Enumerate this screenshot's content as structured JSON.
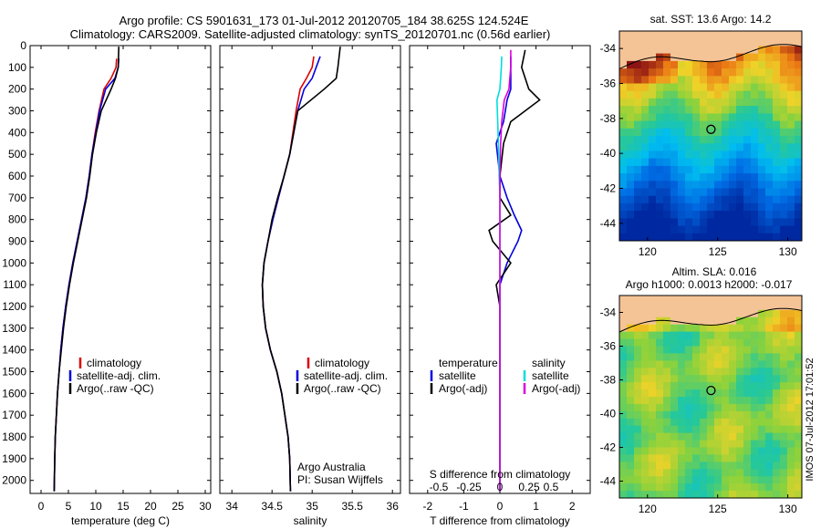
{
  "header": {
    "line1": "Argo profile: CS 5901631_173 01-Jul-2012 20120705_184 38.625S 124.524E",
    "line2": "Climatology: CARS2009. Satellite-adjusted climatology: synTS_20120701.nc (0.56d earlier)"
  },
  "colors": {
    "climatology": "#dd0000",
    "satellite": "#0000dd",
    "argo": "#000000",
    "sal_satellite": "#00dddd",
    "sal_argo": "#dd00dd"
  },
  "chart_data": [
    {
      "type": "line",
      "name": "temperature-panel",
      "xlabel": "temperature (deg C)",
      "ylabel": "",
      "xlim": [
        -2,
        31
      ],
      "ylim": [
        2060,
        0
      ],
      "xticks": [
        0,
        5,
        10,
        15,
        20,
        25,
        30
      ],
      "yticks": [
        0,
        100,
        200,
        300,
        400,
        500,
        600,
        700,
        800,
        900,
        1000,
        1100,
        1200,
        1300,
        1400,
        1500,
        1600,
        1700,
        1800,
        1900,
        2000
      ],
      "legend": [
        "climatology",
        "satellite-adj. clim.",
        "Argo(..raw -QC)"
      ],
      "legend_position": "bottom-center",
      "series": [
        {
          "name": "climatology",
          "color": "#dd0000",
          "x": [
            13.8,
            13.7,
            12.8,
            11.5,
            10.6,
            9.9,
            9.3,
            8.8,
            8.2,
            7.4,
            6.6,
            5.8,
            5.1,
            4.5,
            4.0,
            3.6,
            3.3,
            3.0,
            2.8,
            2.6,
            2.5,
            2.4
          ],
          "y": [
            60,
            100,
            150,
            200,
            300,
            400,
            500,
            600,
            700,
            800,
            900,
            1000,
            1100,
            1200,
            1300,
            1400,
            1500,
            1600,
            1700,
            1800,
            1900,
            2050
          ]
        },
        {
          "name": "satellite-adj. clim.",
          "color": "#0000dd",
          "x": [
            14.2,
            14.1,
            13.5,
            11.8,
            10.7,
            10.0,
            9.3,
            8.8,
            8.2,
            7.4,
            6.6,
            5.8,
            5.1,
            4.5,
            4.0,
            3.6,
            3.3,
            3.0,
            2.8,
            2.6,
            2.5,
            2.4
          ],
          "y": [
            60,
            100,
            150,
            200,
            300,
            400,
            500,
            600,
            700,
            800,
            900,
            1000,
            1100,
            1200,
            1300,
            1400,
            1500,
            1600,
            1700,
            1800,
            1900,
            2050
          ]
        },
        {
          "name": "Argo(..raw -QC)",
          "color": "#000000",
          "x": [
            14.2,
            14.1,
            13.6,
            12.8,
            11.0,
            10.1,
            9.4,
            8.9,
            8.3,
            7.5,
            6.7,
            5.9,
            5.2,
            4.6,
            4.1,
            3.7,
            3.3,
            3.0,
            2.8,
            2.6,
            2.5,
            2.4
          ],
          "y": [
            5,
            100,
            150,
            200,
            300,
            400,
            500,
            600,
            700,
            800,
            900,
            1000,
            1100,
            1200,
            1300,
            1400,
            1500,
            1600,
            1700,
            1800,
            1900,
            2050
          ]
        }
      ]
    },
    {
      "type": "line",
      "name": "salinity-panel",
      "xlabel": "salinity",
      "ylabel": "",
      "xlim": [
        33.85,
        36.1
      ],
      "ylim": [
        2060,
        0
      ],
      "xticks": [
        34,
        34.5,
        35,
        35.5,
        36
      ],
      "legend": [
        "climatology",
        "satellite-adj. clim.",
        "Argo(..raw -QC)"
      ],
      "legend_position": "bottom-right",
      "annotation": [
        "Argo Australia",
        "PI: Susan Wijffels"
      ],
      "series": [
        {
          "name": "climatology",
          "color": "#dd0000",
          "x": [
            35.02,
            35.0,
            34.93,
            34.85,
            34.8,
            34.72,
            34.65,
            34.58,
            34.51,
            34.45,
            34.4,
            34.38,
            34.39,
            34.42,
            34.48,
            34.56,
            34.62,
            34.66,
            34.7,
            34.72,
            34.73
          ],
          "y": [
            50,
            100,
            150,
            200,
            300,
            500,
            600,
            700,
            800,
            900,
            1000,
            1100,
            1200,
            1300,
            1400,
            1500,
            1600,
            1700,
            1800,
            1900,
            2050
          ]
        },
        {
          "name": "satellite-adj. clim.",
          "color": "#0000dd",
          "x": [
            35.1,
            35.05,
            35.0,
            34.9,
            34.82,
            34.72,
            34.65,
            34.58,
            34.51,
            34.45,
            34.4,
            34.38,
            34.39,
            34.42,
            34.48,
            34.56,
            34.62,
            34.66,
            34.7,
            34.72,
            34.73
          ],
          "y": [
            50,
            100,
            150,
            200,
            300,
            500,
            600,
            700,
            800,
            900,
            1000,
            1100,
            1200,
            1300,
            1400,
            1500,
            1600,
            1700,
            1800,
            1900,
            2050
          ]
        },
        {
          "name": "Argo(..raw -QC)",
          "color": "#000000",
          "x": [
            35.35,
            35.32,
            35.3,
            35.15,
            34.82,
            34.72,
            34.65,
            34.57,
            34.5,
            34.45,
            34.4,
            34.38,
            34.39,
            34.42,
            34.48,
            34.56,
            34.62,
            34.66,
            34.7,
            34.72,
            34.73
          ],
          "y": [
            5,
            100,
            150,
            200,
            300,
            500,
            600,
            700,
            800,
            900,
            1000,
            1100,
            1200,
            1300,
            1400,
            1500,
            1600,
            1700,
            1800,
            1900,
            2050
          ]
        }
      ]
    },
    {
      "type": "line",
      "name": "difference-panel",
      "xlabel": "T difference from climatology",
      "x2label": "S difference from climatology",
      "ylabel": "",
      "xlim": [
        -2.5,
        2.5
      ],
      "ylim": [
        2060,
        0
      ],
      "xticks": [
        -2,
        -1,
        0,
        1,
        2
      ],
      "x2ticks": [
        "-0.5",
        "-0.25",
        "0",
        "0.25",
        "0.5"
      ],
      "legend_headers": [
        "temperature",
        "salinity"
      ],
      "legend": [
        "satellite",
        "Argo(-adj)",
        "satellite",
        "Argo(-adj)"
      ],
      "legend_position": "bottom",
      "series": [
        {
          "name": "temperature satellite",
          "color": "#0000dd",
          "x": [
            0.3,
            0.3,
            0.3,
            0.2,
            0.1,
            -0.1,
            0.0,
            0.2,
            0.4,
            0.6,
            0.5,
            0.2,
            0.0,
            0.0,
            0.0,
            0.0,
            0.0,
            0.0,
            0.0
          ],
          "y": [
            50,
            100,
            200,
            250,
            350,
            450,
            600,
            700,
            780,
            850,
            900,
            1000,
            1100,
            1200,
            1300,
            1500,
            1700,
            1900,
            2050
          ]
        },
        {
          "name": "temperature Argo(-adj)",
          "color": "#000000",
          "x": [
            0.7,
            0.6,
            0.8,
            1.1,
            0.3,
            0.1,
            0.0,
            0.0,
            0.3,
            -0.3,
            -0.2,
            0.3,
            -0.1,
            0.0,
            0.0,
            0.0,
            0.0,
            0.0,
            0.0
          ],
          "y": [
            20,
            100,
            200,
            250,
            350,
            450,
            600,
            700,
            780,
            850,
            900,
            1000,
            1100,
            1200,
            1300,
            1500,
            1700,
            1900,
            2050
          ]
        },
        {
          "name": "salinity satellite",
          "color": "#00dddd",
          "x": [
            0.05,
            0.04,
            0.0,
            -0.08,
            -0.06,
            -0.04,
            -0.02,
            0.0,
            0.0,
            0.0,
            0.0,
            0.0,
            0.0,
            0.0,
            0.0,
            0.0,
            0.0,
            0.0,
            0.0
          ],
          "y": [
            50,
            100,
            200,
            250,
            350,
            450,
            600,
            700,
            780,
            850,
            900,
            1000,
            1100,
            1200,
            1300,
            1500,
            1700,
            1900,
            2050
          ]
        },
        {
          "name": "salinity Argo(-adj)",
          "color": "#dd00dd",
          "x": [
            0.3,
            0.3,
            0.25,
            0.12,
            0.05,
            0.02,
            0.0,
            0.0,
            0.0,
            0.0,
            0.0,
            0.0,
            0.0,
            0.0,
            0.0,
            0.0,
            0.0,
            0.0,
            0.0
          ],
          "y": [
            20,
            100,
            200,
            250,
            350,
            450,
            600,
            700,
            780,
            850,
            900,
            1000,
            1100,
            1200,
            1300,
            1500,
            1700,
            1900,
            2050
          ]
        }
      ]
    },
    {
      "type": "heatmap",
      "name": "sst-map",
      "title": "sat. SST: 13.6 Argo: 14.2",
      "xticks": [
        120,
        125,
        130
      ],
      "yticks": [
        -34,
        -36,
        -38,
        -40,
        -42,
        -44
      ],
      "xlim": [
        118,
        131
      ],
      "ylim": [
        -45,
        -33
      ],
      "marker": {
        "lon": 124.524,
        "lat": -38.625
      }
    },
    {
      "type": "heatmap",
      "name": "sla-map",
      "title": [
        "Altim. SLA: 0.016",
        "Argo h1000: 0.0013 h2000: -0.017"
      ],
      "xticks": [
        120,
        125,
        130
      ],
      "yticks": [
        -34,
        -36,
        -38,
        -40,
        -42,
        -44
      ],
      "xlim": [
        118,
        131
      ],
      "ylim": [
        -45,
        -33
      ],
      "marker": {
        "lon": 124.524,
        "lat": -38.625
      }
    }
  ],
  "watermark": "IMOS 07-Jul-2012 17:01:52"
}
